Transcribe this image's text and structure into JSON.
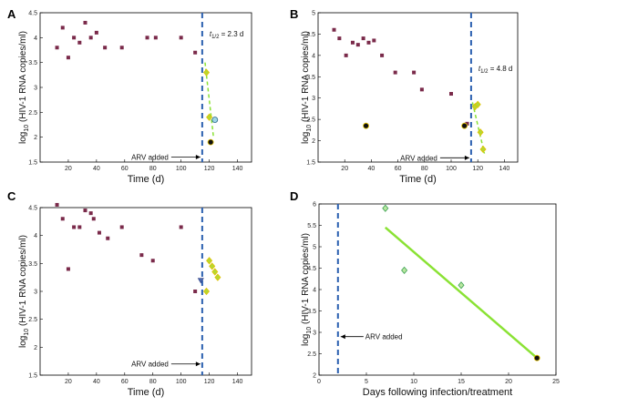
{
  "chart_data": [
    {
      "type": "scatter",
      "panel_label": "A",
      "xlabel": "Time (d)",
      "ylabel": "log10 (HIV-1 RNA copies/ml)",
      "xlim": [
        0,
        150
      ],
      "ylim": [
        1.5,
        4.5
      ],
      "xticks": [
        20,
        40,
        60,
        80,
        100,
        120,
        140
      ],
      "yticks": [
        1.5,
        2,
        2.5,
        3,
        3.5,
        4,
        4.5
      ],
      "vline_x": 115,
      "arrow_label": "ARV added",
      "arrow_y": 1.6,
      "halflife_text": "= 2.3 d",
      "halflife_label": "t1/2",
      "halflife_sub": "1/2",
      "series": [
        {
          "marker": "square",
          "color": "#7a2a4a",
          "x": [
            12,
            16,
            20,
            24,
            28,
            32,
            36,
            40,
            46,
            58,
            76,
            82,
            100,
            110
          ],
          "y": [
            3.8,
            4.2,
            3.6,
            4.0,
            3.9,
            4.3,
            4.0,
            4.1,
            3.8,
            3.8,
            4.0,
            4.0,
            4.0,
            3.7
          ]
        },
        {
          "marker": "diamond",
          "color": "#b7d830",
          "edge": "#e1c100",
          "x": [
            118,
            120
          ],
          "y": [
            3.3,
            2.4
          ]
        },
        {
          "marker": "circle",
          "color": "#111111",
          "edge": "#e1c100",
          "x": [
            121
          ],
          "y": [
            1.9
          ]
        },
        {
          "marker": "circle",
          "color": "#9fd5e8",
          "edge": "#2a6a8a",
          "x": [
            124
          ],
          "y": [
            2.35
          ]
        }
      ],
      "fit": {
        "x": [
          117,
          123
        ],
        "y": [
          3.5,
          2.0
        ]
      }
    },
    {
      "type": "scatter",
      "panel_label": "B",
      "xlabel": "Time (d)",
      "ylabel": "log10 (HIV-1 RNA copies/ml)",
      "xlim": [
        0,
        150
      ],
      "ylim": [
        1.5,
        5
      ],
      "xticks": [
        20,
        40,
        60,
        80,
        100,
        120,
        140
      ],
      "yticks": [
        1.5,
        2,
        2.5,
        3,
        3.5,
        4,
        4.5,
        5
      ],
      "vline_x": 115,
      "arrow_label": "ARV added",
      "arrow_y": 1.6,
      "halflife_text": "= 4.8 d",
      "halflife_label": "t1/2",
      "halflife_sub": "1/2",
      "series": [
        {
          "marker": "square",
          "color": "#7a2a4a",
          "x": [
            12,
            16,
            21,
            26,
            30,
            34,
            38,
            42,
            48,
            58,
            72,
            78,
            100,
            112
          ],
          "y": [
            4.6,
            4.4,
            4.0,
            4.3,
            4.25,
            4.4,
            4.3,
            4.35,
            4.0,
            3.6,
            3.6,
            3.2,
            3.1,
            2.4
          ]
        },
        {
          "marker": "diamond",
          "color": "#b7d830",
          "edge": "#e1c100",
          "x": [
            118,
            120,
            122,
            124
          ],
          "y": [
            2.8,
            2.85,
            2.2,
            1.8
          ]
        },
        {
          "marker": "circle",
          "color": "#111111",
          "edge": "#e1c100",
          "x": [
            36,
            110
          ],
          "y": [
            2.35,
            2.35
          ]
        }
      ],
      "fit": {
        "x": [
          116,
          125
        ],
        "y": [
          2.9,
          1.7
        ]
      }
    },
    {
      "type": "scatter",
      "panel_label": "C",
      "xlabel": "Time (d)",
      "ylabel": "log10 (HIV-1 RNA copies/ml)",
      "xlim": [
        0,
        150
      ],
      "ylim": [
        1.5,
        4.5
      ],
      "xticks": [
        20,
        40,
        60,
        80,
        100,
        120,
        140
      ],
      "yticks": [
        1.5,
        2,
        2.5,
        3,
        3.5,
        4,
        4.5
      ],
      "vline_x": 115,
      "arrow_label": "ARV added",
      "arrow_y": 1.7,
      "series": [
        {
          "marker": "square",
          "color": "#7a2a4a",
          "x": [
            12,
            16,
            20,
            24,
            28,
            32,
            36,
            38,
            42,
            48,
            58,
            72,
            80,
            100,
            110
          ],
          "y": [
            4.55,
            4.3,
            3.4,
            4.15,
            4.15,
            4.45,
            4.4,
            4.3,
            4.05,
            3.95,
            4.15,
            3.65,
            3.55,
            4.15,
            3.0
          ]
        },
        {
          "marker": "diamond",
          "color": "#b7d830",
          "edge": "#e1c100",
          "x": [
            118,
            120,
            122,
            124,
            126
          ],
          "y": [
            3.0,
            3.55,
            3.45,
            3.35,
            3.25
          ]
        },
        {
          "marker": "triangle",
          "color": "#4a6ab0",
          "edge": "#2a3a80",
          "x": [
            114
          ],
          "y": [
            3.2
          ]
        }
      ]
    },
    {
      "type": "scatter",
      "panel_label": "D",
      "xlabel": "Days following infection/treatment",
      "ylabel": "log10 (HIV-1 RNA copies/ml)",
      "xlim": [
        0,
        25
      ],
      "ylim": [
        2,
        6
      ],
      "xticks": [
        0,
        5,
        10,
        15,
        20,
        25
      ],
      "yticks": [
        2,
        2.5,
        3,
        3.5,
        4,
        4.5,
        5,
        5.5,
        6
      ],
      "vline_x": 2,
      "arrow_label": "ARV added",
      "arrow_y": 2.9,
      "series": [
        {
          "marker": "diamond",
          "color": "#b9e7a0",
          "edge": "#3aa050",
          "x": [
            7,
            9,
            15
          ],
          "y": [
            5.9,
            4.45,
            4.1
          ]
        },
        {
          "marker": "circle",
          "color": "#111111",
          "edge": "#e1c100",
          "x": [
            23
          ],
          "y": [
            2.4
          ]
        }
      ],
      "fit": {
        "x": [
          7,
          23
        ],
        "y": [
          5.45,
          2.4
        ]
      }
    }
  ]
}
